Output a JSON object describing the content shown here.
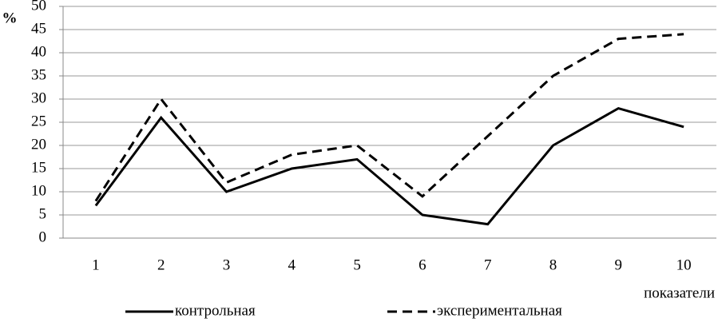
{
  "chart_data": {
    "type": "line",
    "y_label": "%",
    "x_label": "показатели",
    "categories": [
      "1",
      "2",
      "3",
      "4",
      "5",
      "6",
      "7",
      "8",
      "9",
      "10"
    ],
    "series": [
      {
        "name": "контрольная",
        "color": "#000000",
        "dash": "solid",
        "values": [
          7,
          26,
          10,
          15,
          17,
          5,
          3,
          20,
          28,
          24
        ]
      },
      {
        "name": "экспериментальная",
        "color": "#000000",
        "dash": "dashed",
        "values": [
          8,
          30,
          12,
          18,
          20,
          9,
          22,
          35,
          43,
          44
        ]
      }
    ],
    "ylim": [
      0,
      50
    ],
    "yticks": [
      0,
      5,
      10,
      15,
      20,
      25,
      30,
      35,
      40,
      45,
      50
    ],
    "grid": true
  }
}
